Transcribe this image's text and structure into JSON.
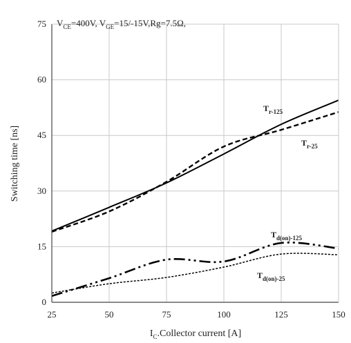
{
  "chart_data": {
    "type": "line",
    "annotation": {
      "v": "V",
      "ce": "CE",
      "mid": "=400V, V",
      "ge": "GE",
      "rest": "=15/-15V,Rg=7.5Ω,"
    },
    "xlabel": {
      "main": "I",
      "sub": "C",
      "rest": ".Collector current [A]"
    },
    "ylabel": "Switching time [ns]",
    "xlim": [
      25,
      150
    ],
    "ylim": [
      0,
      75
    ],
    "x_ticks": [
      25,
      50,
      75,
      100,
      125,
      150
    ],
    "y_ticks": [
      0,
      15,
      30,
      45,
      60,
      75
    ],
    "grid": true,
    "series": [
      {
        "name": "Tr-125",
        "label_main": "T",
        "label_sub": "r-125",
        "style": "solid",
        "x": [
          25,
          50,
          75,
          100,
          125,
          150
        ],
        "y": [
          19.2,
          25.6,
          32.2,
          40.0,
          48.0,
          54.5
        ]
      },
      {
        "name": "Tr-25",
        "label_main": "T",
        "label_sub": "r-25",
        "style": "dashed",
        "x": [
          25,
          50,
          75,
          100,
          125,
          150
        ],
        "y": [
          19.0,
          24.5,
          32.5,
          42.0,
          46.5,
          51.3
        ]
      },
      {
        "name": "Td(on)-125",
        "label_main": "T",
        "label_sub": "d(on)-125",
        "style": "dashdotdot",
        "x": [
          25,
          50,
          75,
          100,
          125,
          150
        ],
        "y": [
          1.7,
          6.5,
          11.5,
          11.0,
          16.0,
          14.5
        ]
      },
      {
        "name": "Td(on)-25",
        "label_main": "T",
        "label_sub": "d(on)-25",
        "style": "dotted",
        "x": [
          25,
          50,
          75,
          100,
          125,
          150
        ],
        "y": [
          2.5,
          5.0,
          6.7,
          9.5,
          13.0,
          12.8
        ]
      }
    ]
  }
}
